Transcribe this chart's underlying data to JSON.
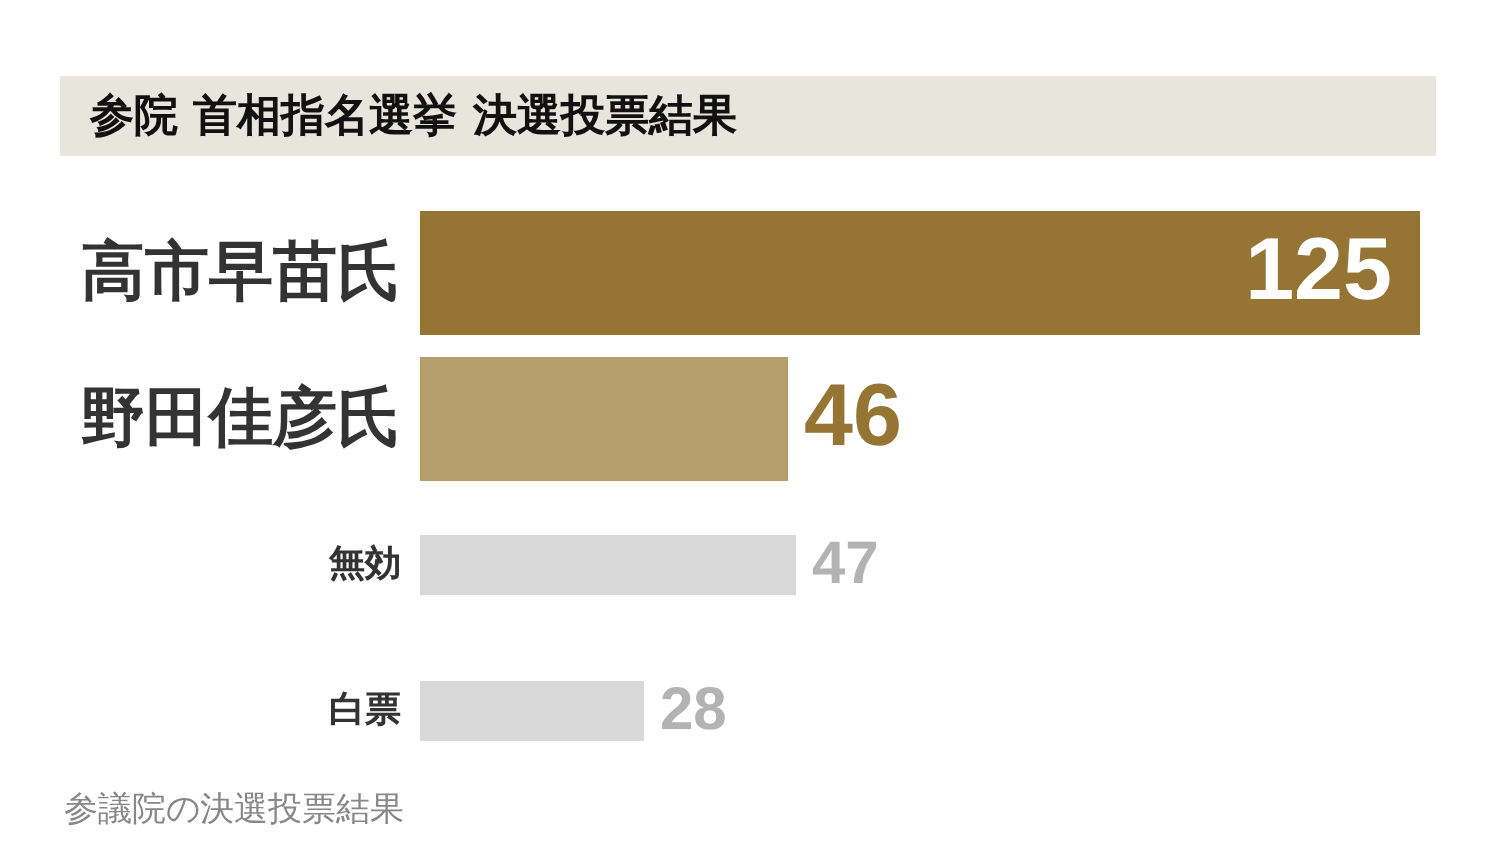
{
  "chart_data": {
    "type": "bar",
    "orientation": "horizontal",
    "title": "参院 首相指名選挙 決選投票結果",
    "categories": [
      "高市早苗氏",
      "野田佳彦氏",
      "無効",
      "白票"
    ],
    "values": [
      125,
      46,
      47,
      28
    ],
    "colors": [
      "#957434",
      "#b59e6c",
      "#d9d9d9",
      "#d9d9d9"
    ],
    "data_labels": true,
    "annotations": [
      "参議院の決選投票結果"
    ]
  }
}
